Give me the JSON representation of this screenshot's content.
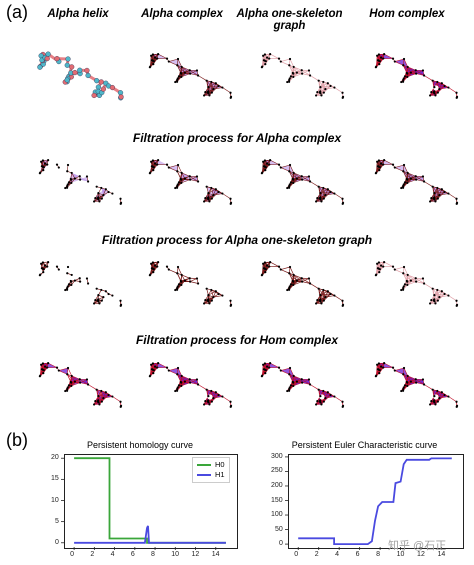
{
  "panel_a": {
    "label": "(a)",
    "column_headers": [
      "Alpha helix",
      "Alpha complex",
      "Alpha one-skeleton graph",
      "Hom complex"
    ],
    "header_lines": [
      [
        "Alpha helix"
      ],
      [
        "Alpha complex"
      ],
      [
        "Alpha one-skeleton",
        "graph"
      ],
      [
        "Hom complex"
      ]
    ],
    "section_titles": [
      "Filtration process for Alpha complex",
      "Filtration process for Alpha one-skeleton graph",
      "Filtration process for Hom complex"
    ],
    "colors": {
      "node": "#000000",
      "edge_dark": "#7a1a1a",
      "alpha_fill": "#b48ae6",
      "skeleton_edge": "#e0a0a8",
      "hom_fill": "#6a1cd0",
      "hom_edge": "#c0102a",
      "helix_blue": "#4fb7c9",
      "helix_red": "#e36b72"
    }
  },
  "panel_b": {
    "label": "(b)",
    "watermark": "知乎 @石正"
  },
  "chart_data": [
    {
      "type": "line",
      "title": "Persistent homology curve",
      "xlabel": "",
      "ylabel": "",
      "xlim": [
        -1,
        16
      ],
      "ylim": [
        -1,
        21
      ],
      "xticks": [
        0,
        2,
        4,
        6,
        8,
        10,
        12,
        14
      ],
      "yticks": [
        0,
        5,
        10,
        15,
        20
      ],
      "legend_position": "top-right",
      "series": [
        {
          "name": "H0",
          "color": "#3aa63a",
          "points": [
            [
              0,
              20
            ],
            [
              3.5,
              20
            ],
            [
              3.5,
              1
            ],
            [
              7.2,
              1
            ],
            [
              7.2,
              0
            ],
            [
              15,
              0
            ]
          ]
        },
        {
          "name": "H1",
          "color": "#4a4ae0",
          "points": [
            [
              0,
              0
            ],
            [
              7.0,
              0
            ],
            [
              7.2,
              3.5
            ],
            [
              7.3,
              4
            ],
            [
              7.4,
              0
            ],
            [
              15,
              0
            ]
          ]
        }
      ]
    },
    {
      "type": "line",
      "title": "Persistent Euler Characteristic curve",
      "xlabel": "",
      "ylabel": "",
      "xlim": [
        -1,
        16
      ],
      "ylim": [
        -10,
        310
      ],
      "xticks": [
        0,
        2,
        4,
        6,
        8,
        10,
        12,
        14
      ],
      "yticks": [
        0,
        50,
        100,
        150,
        200,
        250,
        300
      ],
      "series": [
        {
          "color": "#4a4ae0",
          "points": [
            [
              0,
              20
            ],
            [
              3.5,
              20
            ],
            [
              3.5,
              0
            ],
            [
              6.8,
              0
            ],
            [
              7.2,
              10
            ],
            [
              7.5,
              80
            ],
            [
              7.8,
              130
            ],
            [
              8.2,
              145
            ],
            [
              9.3,
              145
            ],
            [
              9.5,
              210
            ],
            [
              10.0,
              215
            ],
            [
              10.3,
              275
            ],
            [
              10.6,
              290
            ],
            [
              12.8,
              290
            ],
            [
              13.0,
              295
            ],
            [
              15,
              295
            ]
          ]
        }
      ]
    }
  ]
}
